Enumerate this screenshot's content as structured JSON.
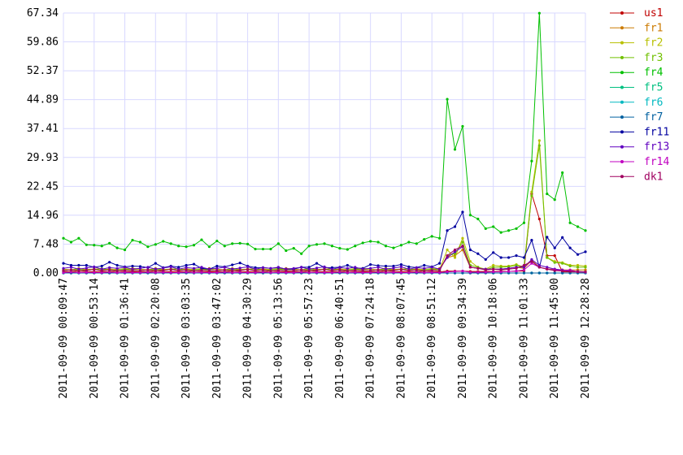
{
  "chart_data": {
    "type": "line",
    "x": [
      0,
      1,
      2,
      3,
      4,
      5,
      6,
      7,
      8,
      9,
      10,
      11,
      12,
      13,
      14,
      15,
      16,
      17,
      18,
      19,
      20,
      21,
      22,
      23,
      24,
      25,
      26,
      27,
      28,
      29,
      30,
      31,
      32,
      33,
      34,
      35,
      36,
      37,
      38,
      39,
      40,
      41,
      42,
      43,
      44,
      45,
      46,
      47,
      48,
      49,
      50,
      51,
      52,
      53,
      54,
      55,
      56,
      57,
      58,
      59,
      60,
      61,
      62,
      63,
      64,
      65,
      66,
      67,
      68
    ],
    "xlim": [
      0,
      68
    ],
    "xticks": [
      {
        "value": 0,
        "label": "2011-09-09 00:09:47"
      },
      {
        "value": 4,
        "label": "2011-09-09 00:53:14"
      },
      {
        "value": 8,
        "label": "2011-09-09 01:36:41"
      },
      {
        "value": 12,
        "label": "2011-09-09 02:20:08"
      },
      {
        "value": 16,
        "label": "2011-09-09 03:03:35"
      },
      {
        "value": 20,
        "label": "2011-09-09 03:47:02"
      },
      {
        "value": 24,
        "label": "2011-09-09 04:30:29"
      },
      {
        "value": 28,
        "label": "2011-09-09 05:13:56"
      },
      {
        "value": 32,
        "label": "2011-09-09 05:57:23"
      },
      {
        "value": 36,
        "label": "2011-09-09 06:40:51"
      },
      {
        "value": 40,
        "label": "2011-09-09 07:24:18"
      },
      {
        "value": 44,
        "label": "2011-09-09 08:07:45"
      },
      {
        "value": 48,
        "label": "2011-09-09 08:51:12"
      },
      {
        "value": 52,
        "label": "2011-09-09 09:34:39"
      },
      {
        "value": 56,
        "label": "2011-09-09 10:18:06"
      },
      {
        "value": 60,
        "label": "2011-09-09 11:01:33"
      },
      {
        "value": 64,
        "label": "2011-09-09 11:45:00"
      },
      {
        "value": 68,
        "label": "2011-09-09 12:28:28"
      }
    ],
    "ylim": [
      0,
      67.34
    ],
    "yticks": [
      {
        "value": 0,
        "label": "0.00"
      },
      7.48,
      14.96,
      22.45,
      29.93,
      37.41,
      44.89,
      52.37,
      59.86,
      67.34
    ],
    "grid": true,
    "legend": "right",
    "series": [
      {
        "name": "us1",
        "color": "#c00000",
        "values": [
          0.4,
          0.3,
          0.5,
          0.4,
          0.3,
          0.4,
          0.3,
          0.5,
          0.4,
          0.3,
          0.4,
          0.3,
          0.5,
          0.4,
          0.3,
          0.4,
          0.3,
          0.5,
          0.4,
          0.3,
          0.4,
          0.3,
          0.5,
          0.4,
          0.3,
          0.4,
          0.3,
          0.5,
          0.4,
          0.3,
          0.4,
          0.3,
          0.5,
          0.4,
          0.3,
          0.4,
          0.3,
          0.5,
          0.4,
          0.3,
          0.4,
          0.3,
          0.5,
          0.4,
          0.3,
          0.4,
          0.3,
          0.5,
          0.4,
          0.3,
          0.5,
          0.5,
          0.5,
          0.4,
          0.4,
          0.4,
          0.4,
          0.4,
          0.4,
          0.5,
          0.5,
          20.5,
          14,
          4.5,
          4.5,
          0.3,
          0.3,
          0.3,
          0.3
        ]
      },
      {
        "name": "fr1",
        "color": "#cc7a00",
        "values": [
          1,
          0.8,
          1.2,
          0.9,
          1,
          1.1,
          0.8,
          1,
          0.9,
          1.2,
          1,
          0.8,
          1.2,
          0.9,
          1,
          1.1,
          0.8,
          1,
          0.9,
          1.2,
          1,
          0.8,
          1.2,
          0.9,
          1,
          1.1,
          0.8,
          1,
          0.9,
          1.2,
          1,
          0.8,
          1.2,
          0.9,
          1,
          1.1,
          0.8,
          1,
          0.9,
          1.2,
          1,
          0.8,
          1.2,
          0.9,
          1,
          1.1,
          0.8,
          1,
          0.9,
          1.2,
          4,
          4.5,
          6,
          1.5,
          1.2,
          1,
          1,
          1,
          1.2,
          1.5,
          1.2,
          3.3,
          1.5,
          1,
          1,
          0.8,
          0.8,
          0.8,
          0.8
        ]
      },
      {
        "name": "fr2",
        "color": "#b8c000",
        "values": [
          1,
          0.6,
          0.8,
          0.9,
          1,
          0.7,
          1.1,
          0.8,
          1.2,
          0.9,
          1,
          0.6,
          0.8,
          0.9,
          1,
          0.7,
          1.1,
          0.8,
          1.2,
          0.9,
          1,
          0.6,
          0.8,
          0.9,
          1,
          0.7,
          1.1,
          0.8,
          1.2,
          0.9,
          1,
          0.6,
          0.8,
          0.9,
          1,
          0.7,
          1.1,
          0.8,
          1.2,
          0.9,
          1,
          0.6,
          0.8,
          0.9,
          1,
          0.7,
          1.1,
          0.8,
          1.2,
          0.9,
          6,
          4,
          9,
          3,
          1.5,
          1,
          2,
          1.8,
          1.8,
          2.2,
          1.5,
          21,
          34.3,
          4,
          3,
          2.7,
          2,
          2,
          1.8
        ]
      },
      {
        "name": "fr3",
        "color": "#70c000",
        "values": [
          0.6,
          0.8,
          1,
          0.7,
          0.9,
          1.1,
          0.6,
          0.8,
          1,
          0.7,
          0.6,
          0.8,
          1,
          0.7,
          0.9,
          1.1,
          0.6,
          0.8,
          1,
          0.7,
          0.6,
          0.8,
          1,
          0.7,
          0.9,
          1.1,
          0.6,
          0.8,
          1,
          0.7,
          0.6,
          0.8,
          1,
          0.7,
          0.9,
          1.1,
          0.6,
          0.8,
          1,
          0.7,
          0.6,
          0.8,
          1,
          0.7,
          0.9,
          1.1,
          0.6,
          0.8,
          1,
          0.7,
          4.5,
          5,
          8,
          2,
          1.5,
          0.8,
          1.5,
          1.5,
          1.6,
          2,
          1.5,
          20,
          33,
          4,
          2.7,
          2.5,
          1.8,
          1.5,
          1.5
        ]
      },
      {
        "name": "fr4",
        "color": "#00c000",
        "values": [
          9,
          8,
          9,
          7.3,
          7.2,
          7,
          7.7,
          6.5,
          6,
          8.5,
          8,
          6.8,
          7.4,
          8.2,
          7.6,
          7,
          6.8,
          7.2,
          8.6,
          6.8,
          8.3,
          7,
          7.6,
          7.7,
          7.5,
          6.2,
          6.2,
          6.2,
          7.6,
          5.8,
          6.4,
          5,
          7,
          7.4,
          7.6,
          7,
          6.4,
          6.1,
          7,
          7.8,
          8.2,
          8,
          7,
          6.5,
          7.2,
          8,
          7.6,
          8.7,
          9.5,
          9,
          45,
          32,
          38,
          15,
          14,
          11.5,
          12,
          10.5,
          11,
          11.5,
          13,
          29,
          67.3,
          20.5,
          19,
          26,
          13,
          12,
          11
        ]
      },
      {
        "name": "fr5",
        "color": "#00c080",
        "values": [
          0,
          0,
          0,
          0,
          0,
          0,
          0,
          0,
          0,
          0,
          0,
          0,
          0,
          0,
          0,
          0,
          0,
          0,
          0,
          0,
          0,
          0,
          0,
          0,
          0,
          0,
          0,
          0,
          0,
          0,
          0,
          0,
          0,
          0,
          0,
          0,
          0,
          0,
          0,
          0,
          0,
          0,
          0,
          0,
          0,
          0,
          0,
          0,
          0,
          0,
          0,
          0,
          0,
          0,
          0,
          0,
          0,
          0,
          0,
          0,
          0,
          0,
          0,
          0,
          0,
          0,
          0,
          0,
          0
        ]
      },
      {
        "name": "fr6",
        "color": "#00b8c0",
        "values": [
          0,
          0,
          0,
          0,
          0,
          0,
          0,
          0,
          0,
          0,
          0,
          0,
          0,
          0,
          0,
          0,
          0,
          0,
          0,
          0,
          0,
          0,
          0,
          0,
          0,
          0,
          0,
          0,
          0,
          0,
          0,
          0,
          0,
          0,
          0,
          0,
          0,
          0,
          0,
          0,
          0,
          0,
          0,
          0,
          0,
          0,
          0,
          0,
          0,
          0,
          0,
          0,
          0,
          0,
          0,
          0,
          0,
          0,
          0,
          0,
          0,
          0,
          0,
          0,
          0,
          0,
          0,
          0,
          0
        ]
      },
      {
        "name": "fr7",
        "color": "#0060a0",
        "values": [
          0,
          0,
          0,
          0,
          0,
          0,
          0,
          0,
          0,
          0,
          0,
          0,
          0,
          0,
          0,
          0,
          0,
          0,
          0,
          0,
          0,
          0,
          0,
          0,
          0,
          0,
          0,
          0,
          0,
          0,
          0,
          0,
          0,
          0,
          0,
          0,
          0,
          0,
          0,
          0,
          0,
          0,
          0,
          0,
          0,
          0,
          0,
          0,
          0,
          0,
          0,
          0,
          0,
          0,
          0,
          0,
          0,
          0,
          0,
          0,
          0,
          0,
          0,
          0,
          0,
          0,
          0,
          0,
          0
        ]
      },
      {
        "name": "fr11",
        "color": "#0000a0",
        "values": [
          2.5,
          2,
          2,
          2,
          1.5,
          1.8,
          2.8,
          2,
          1.6,
          1.8,
          1.7,
          1.4,
          2.5,
          1.4,
          1.8,
          1.5,
          2,
          2.3,
          1.2,
          1,
          1.8,
          1.6,
          2.1,
          2.6,
          1.8,
          1.4,
          1.4,
          1.2,
          1.4,
          1,
          1,
          1.5,
          1.5,
          2.5,
          1.4,
          1.4,
          1.5,
          2,
          1.3,
          1.2,
          2.2,
          1.9,
          1.8,
          1.8,
          2.2,
          1.6,
          1.4,
          2,
          1.6,
          2.5,
          11,
          12,
          15.8,
          6,
          5,
          3.5,
          5.3,
          4,
          4,
          4.5,
          4,
          8.5,
          1.5,
          9.3,
          6.5,
          9.2,
          6.5,
          4.8,
          5.5
        ]
      },
      {
        "name": "fr13",
        "color": "#6000c0",
        "values": [
          1.2,
          1.5,
          1,
          1.3,
          1.6,
          1,
          1.4,
          1.2,
          1.5,
          1,
          1.2,
          1.5,
          1,
          1.3,
          1.6,
          1,
          1.4,
          1.2,
          1.5,
          1,
          1.2,
          1.5,
          1,
          1.3,
          1.6,
          1,
          1.4,
          1.2,
          1.5,
          1,
          1.2,
          1.5,
          1,
          1.3,
          1.6,
          1,
          1.4,
          1.2,
          1.5,
          1,
          1.2,
          1.5,
          1,
          1.3,
          1.6,
          1,
          1.4,
          1.2,
          1.5,
          1,
          4,
          5.5,
          6.8,
          1.5,
          1.2,
          1,
          1,
          1,
          1.2,
          1.5,
          1.5,
          3.5,
          2,
          1.5,
          1,
          0.8,
          0.5,
          0.4,
          0.3
        ]
      },
      {
        "name": "fr14",
        "color": "#c000c0",
        "values": [
          0.1,
          0.2,
          0.1,
          0.15,
          0.1,
          0.1,
          0.2,
          0.1,
          0.15,
          0.1,
          0.1,
          0.2,
          0.1,
          0.15,
          0.1,
          0.1,
          0.2,
          0.1,
          0.15,
          0.1,
          0.1,
          0.2,
          0.1,
          0.15,
          0.1,
          0.1,
          0.2,
          0.1,
          0.15,
          0.1,
          0.1,
          0.2,
          0.1,
          0.15,
          0.1,
          0.1,
          0.2,
          0.1,
          0.15,
          0.1,
          0.1,
          0.2,
          0.1,
          0.15,
          0.1,
          0.1,
          0.2,
          0.1,
          0.15,
          0.1,
          0.3,
          0.4,
          0.5,
          0.2,
          0.2,
          0.2,
          0.3,
          0.3,
          0.4,
          0.5,
          0.8,
          2.5,
          1.5,
          1,
          0.8,
          0.6,
          0.8,
          0.3,
          0.2
        ]
      },
      {
        "name": "dk1",
        "color": "#a00060",
        "values": [
          0.6,
          0.8,
          0.5,
          0.7,
          0.9,
          0.6,
          0.8,
          0.5,
          0.7,
          0.6,
          0.6,
          0.8,
          0.5,
          0.7,
          0.9,
          0.6,
          0.8,
          0.5,
          0.7,
          0.6,
          0.6,
          0.8,
          0.5,
          0.7,
          0.9,
          0.6,
          0.8,
          0.5,
          0.7,
          0.6,
          0.6,
          0.8,
          0.5,
          0.7,
          0.9,
          0.6,
          0.8,
          0.5,
          0.7,
          0.6,
          0.6,
          0.8,
          0.5,
          0.7,
          0.9,
          0.6,
          0.8,
          0.5,
          0.7,
          0.6,
          4.5,
          6,
          7,
          1.5,
          1.2,
          0.8,
          1,
          0.8,
          1,
          1.2,
          2,
          3,
          1.5,
          1,
          0.6,
          0.5,
          0.4,
          0.3,
          0.3
        ]
      }
    ]
  }
}
